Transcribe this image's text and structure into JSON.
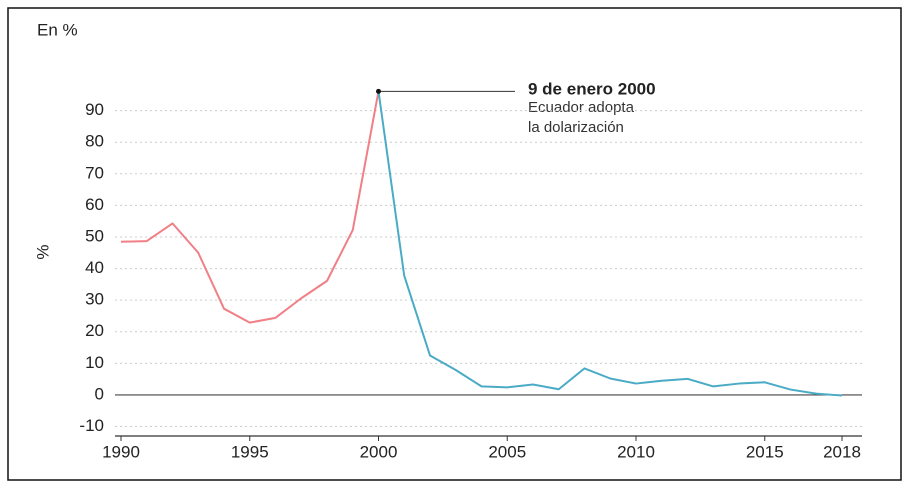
{
  "chart_data": {
    "type": "line",
    "title": "En %",
    "y_label": "%",
    "xlim": [
      1990,
      2018
    ],
    "xticks": [
      1990,
      1995,
      2000,
      2005,
      2010,
      2015,
      2018
    ],
    "ylim": [
      -13,
      97
    ],
    "yticks": [
      -10,
      0,
      10,
      20,
      30,
      40,
      50,
      60,
      70,
      80,
      90
    ],
    "grid": true,
    "series": [
      {
        "color": "#f07f86",
        "x": [
          1990,
          1991,
          1992,
          1993,
          1994,
          1995,
          1996,
          1997,
          1998,
          1999,
          2000
        ],
        "values": [
          48.5,
          48.7,
          54.3,
          45,
          27.3,
          22.9,
          24.4,
          30.6,
          36.1,
          52.2,
          96.1
        ]
      },
      {
        "color": "#4aabc6",
        "x": [
          2000,
          2001,
          2002,
          2003,
          2004,
          2005,
          2006,
          2007,
          2008,
          2009,
          2010,
          2011,
          2012,
          2013,
          2014,
          2015,
          2016,
          2017,
          2018
        ],
        "values": [
          96.1,
          37.7,
          12.5,
          7.9,
          2.7,
          2.4,
          3.3,
          1.8,
          8.4,
          5.2,
          3.6,
          4.5,
          5.1,
          2.7,
          3.6,
          4.0,
          1.7,
          0.4,
          -0.2
        ]
      }
    ],
    "annotation": {
      "title": "9 de enero 2000",
      "lines": [
        "Ecuador adopta",
        "la dolarización"
      ]
    }
  }
}
